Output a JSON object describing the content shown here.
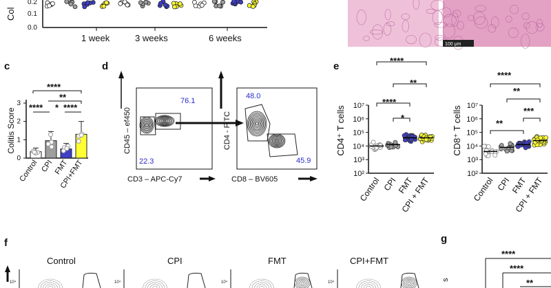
{
  "panel_labels": {
    "c": "c",
    "d": "d",
    "e": "e",
    "f": "f",
    "g": "g"
  },
  "top": {
    "axis_fragment": "Col",
    "x_ticks": [
      "1 week",
      "3 weeks",
      "6 weeks"
    ],
    "scale_bar": "100 μm"
  },
  "colors": {
    "control": "#ffffff",
    "cpi": "#9e9e9e",
    "fmt": "#3f3fc8",
    "cpi_fmt": "#ffff33",
    "gate_pct": "#2b2bcc",
    "histology": "#e6a8c8"
  },
  "panel_c": {
    "ylabel": "Colitis Score",
    "sig": [
      "****",
      "**",
      "****",
      "*",
      "****"
    ],
    "chart_data": {
      "type": "bar",
      "categories": [
        "Control",
        "CPI",
        "FMT",
        "CPI+FMT"
      ],
      "values": [
        0.35,
        0.95,
        0.5,
        1.3
      ],
      "errors": [
        0.2,
        0.5,
        0.3,
        0.7
      ],
      "ylim": [
        0,
        3
      ],
      "yticks": [
        "0",
        "1",
        "2",
        "3"
      ],
      "xlabel": "",
      "ylabel": "Colitis Score"
    }
  },
  "panel_d": {
    "left": {
      "ylabel": "CD45 – ef450",
      "xlabel": "CD3 – APC-Cy7",
      "gate_hi": "76.1",
      "gate_lo": "22.3"
    },
    "right": {
      "ylabel": "CD4 - FITC",
      "xlabel": "CD8 – BV605",
      "gate_hi": "48.0",
      "gate_lo": "45.9"
    }
  },
  "panel_e": {
    "chart_data": [
      {
        "type": "scatter",
        "ylabel": "CD4⁺ T cells",
        "categories": [
          "Control",
          "CPI",
          "FMT",
          "CPI + FMT"
        ],
        "medians_log10": [
          4.0,
          4.1,
          4.6,
          4.6
        ],
        "ylim_log10": [
          2,
          7
        ],
        "yticks": [
          "10⁷",
          "10⁶",
          "10⁵",
          "10⁴",
          "10³",
          "10²"
        ],
        "sig": [
          "****",
          "**",
          "****",
          "*"
        ]
      },
      {
        "type": "scatter",
        "ylabel": "CD8⁺ T cells",
        "categories": [
          "Control",
          "CPI",
          "FMT",
          "CPI + FMT"
        ],
        "medians_log10": [
          3.6,
          3.9,
          4.1,
          4.4
        ],
        "ylim_log10": [
          2,
          7
        ],
        "yticks": [
          "10⁷",
          "10⁶",
          "10⁵",
          "10⁴",
          "10³",
          "10²"
        ],
        "sig": [
          "****",
          "**",
          "***",
          "**"
        ]
      }
    ]
  },
  "panel_f": {
    "titles": [
      "Control",
      "CPI",
      "FMT",
      "CPI+FMT"
    ],
    "tick": "10⁴"
  },
  "panel_g": {
    "sig": [
      "****",
      "****",
      "**"
    ]
  }
}
